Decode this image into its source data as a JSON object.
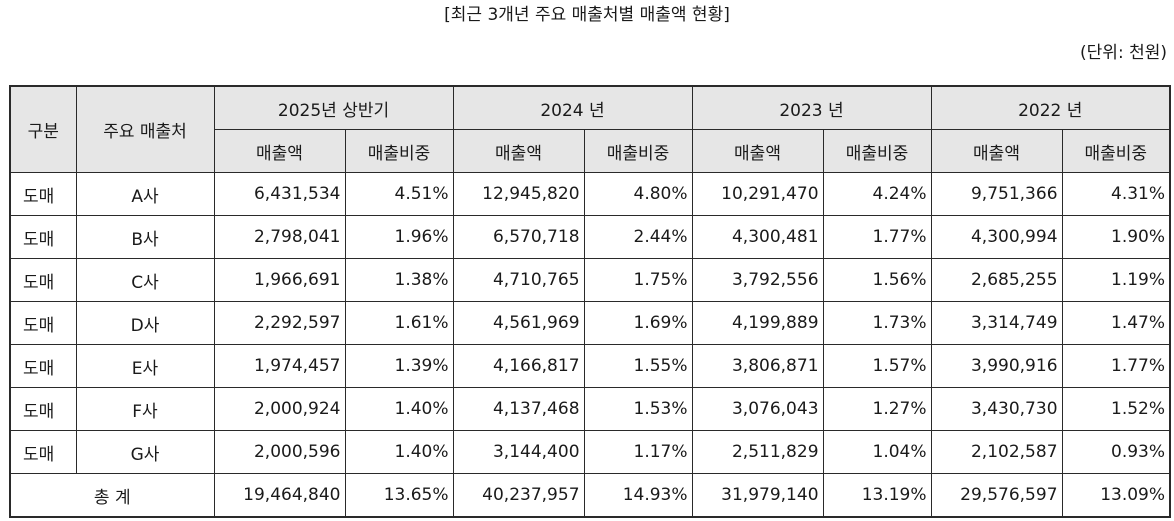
{
  "title": "[최근 3개년 주요 매출처별 매출액 현황]",
  "unit": "(단위: 천원)",
  "headers": {
    "category": "구분",
    "customer": "주요 매출처",
    "periods": [
      "2025년 상반기",
      "2024 년",
      "2023 년",
      "2022 년"
    ],
    "sales": "매출액",
    "ratio": "매출비중"
  },
  "rows": [
    {
      "category": "도매",
      "customer": "A사",
      "v": [
        "6,431,534",
        "4.51%",
        "12,945,820",
        "4.80%",
        "10,291,470",
        "4.24%",
        "9,751,366",
        "4.31%"
      ]
    },
    {
      "category": "도매",
      "customer": "B사",
      "v": [
        "2,798,041",
        "1.96%",
        "6,570,718",
        "2.44%",
        "4,300,481",
        "1.77%",
        "4,300,994",
        "1.90%"
      ]
    },
    {
      "category": "도매",
      "customer": "C사",
      "v": [
        "1,966,691",
        "1.38%",
        "4,710,765",
        "1.75%",
        "3,792,556",
        "1.56%",
        "2,685,255",
        "1.19%"
      ]
    },
    {
      "category": "도매",
      "customer": "D사",
      "v": [
        "2,292,597",
        "1.61%",
        "4,561,969",
        "1.69%",
        "4,199,889",
        "1.73%",
        "3,314,749",
        "1.47%"
      ]
    },
    {
      "category": "도매",
      "customer": "E사",
      "v": [
        "1,974,457",
        "1.39%",
        "4,166,817",
        "1.55%",
        "3,806,871",
        "1.57%",
        "3,990,916",
        "1.77%"
      ]
    },
    {
      "category": "도매",
      "customer": "F사",
      "v": [
        "2,000,924",
        "1.40%",
        "4,137,468",
        "1.53%",
        "3,076,043",
        "1.27%",
        "3,430,730",
        "1.52%"
      ]
    },
    {
      "category": "도매",
      "customer": "G사",
      "v": [
        "2,000,596",
        "1.40%",
        "3,144,400",
        "1.17%",
        "2,511,829",
        "1.04%",
        "2,102,587",
        "0.93%"
      ]
    }
  ],
  "total": {
    "label": "총 계",
    "v": [
      "19,464,840",
      "13.65%",
      "40,237,957",
      "14.93%",
      "31,979,140",
      "13.19%",
      "29,576,597",
      "13.09%"
    ]
  }
}
